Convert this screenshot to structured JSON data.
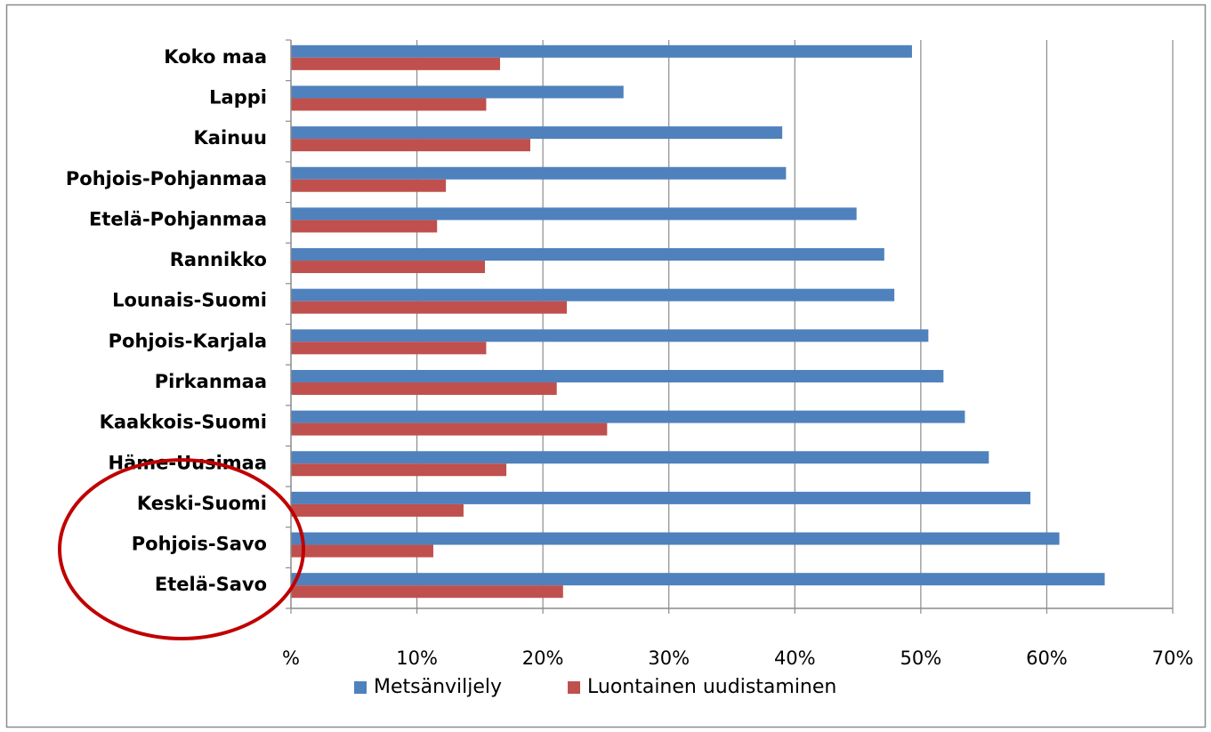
{
  "chart_data": {
    "type": "bar",
    "orientation": "horizontal",
    "categories": [
      "Koko maa",
      "Lappi",
      "Kainuu",
      "Pohjois-Pohjanmaa",
      "Etelä-Pohjanmaa",
      "Rannikko",
      "Lounais-Suomi",
      "Pohjois-Karjala",
      "Pirkanmaa",
      "Kaakkois-Suomi",
      "Häme-Uusimaa",
      "Keski-Suomi",
      "Pohjois-Savo",
      "Etelä-Savo"
    ],
    "series": [
      {
        "name": "Metsänviljely",
        "color": "#4f81bd",
        "values": [
          49.3,
          26.4,
          39.0,
          39.3,
          44.9,
          47.1,
          47.9,
          50.6,
          51.8,
          53.5,
          55.4,
          58.7,
          61.0,
          64.6
        ]
      },
      {
        "name": "Luontainen uudistaminen",
        "color": "#c0504d",
        "values": [
          16.6,
          15.5,
          19.0,
          12.3,
          11.6,
          15.4,
          21.9,
          15.5,
          21.1,
          25.1,
          17.1,
          13.7,
          11.3,
          21.6
        ]
      }
    ],
    "xlim": [
      0,
      70
    ],
    "xticks": [
      0,
      10,
      20,
      30,
      40,
      50,
      60,
      70
    ],
    "xtick_labels": [
      "%",
      "10%",
      "20%",
      "30%",
      "40%",
      "50%",
      "60%",
      "70%"
    ],
    "title": "",
    "xlabel": "",
    "ylabel": "",
    "grid": true,
    "legend_position": "bottom",
    "annotation": {
      "type": "ellipse",
      "color": "#c00000",
      "highlights": [
        "Keski-Suomi",
        "Pohjois-Savo",
        "Etelä-Savo"
      ]
    }
  }
}
